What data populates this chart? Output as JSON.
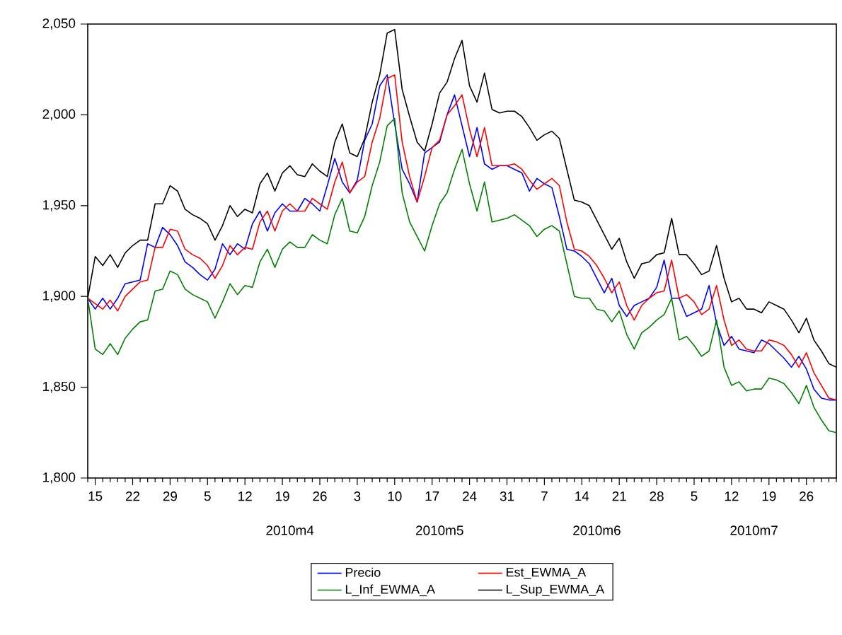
{
  "chart_data": {
    "type": "line",
    "categories": [
      null,
      "15",
      null,
      null,
      null,
      null,
      "22",
      null,
      null,
      null,
      null,
      "29",
      null,
      null,
      null,
      null,
      "5",
      null,
      null,
      null,
      null,
      "12",
      null,
      null,
      null,
      null,
      "19",
      null,
      null,
      null,
      null,
      "26",
      null,
      null,
      null,
      null,
      "3",
      null,
      null,
      null,
      null,
      "10",
      null,
      null,
      null,
      null,
      "17",
      null,
      null,
      null,
      null,
      "24",
      null,
      null,
      null,
      null,
      "31",
      null,
      null,
      null,
      null,
      "7",
      null,
      null,
      null,
      null,
      "14",
      null,
      null,
      null,
      null,
      "21",
      null,
      null,
      null,
      null,
      "28",
      null,
      null,
      null,
      null,
      "5",
      null,
      null,
      null,
      null,
      "12",
      null,
      null,
      null,
      null,
      "19",
      null,
      null,
      null,
      null,
      "26",
      null,
      null,
      null,
      null
    ],
    "series": [
      {
        "name": "Precio",
        "color": "#0000ff",
        "values": [
          1899,
          1893,
          1899,
          1893,
          1899,
          1907,
          1908,
          1909,
          1929,
          1927,
          1938,
          1934,
          1928,
          1919,
          1916,
          1912,
          1909,
          1915,
          1929,
          1923,
          1929,
          1926,
          1940,
          1947,
          1936,
          1946,
          1951,
          1947,
          1947,
          1954,
          1951,
          1947,
          1961,
          1976,
          1963,
          1957,
          1964,
          1986,
          1995,
          2016,
          2022,
          1995,
          1970,
          1962,
          1952,
          1979,
          1982,
          1985,
          2000,
          2011,
          1994,
          1977,
          1993,
          1973,
          1970,
          1972,
          1972,
          1970,
          1968,
          1958,
          1965,
          1962,
          1960,
          1944,
          1926,
          1925,
          1922,
          1918,
          1910,
          1902,
          1910,
          1895,
          1889,
          1895,
          1897,
          1899,
          1905,
          1920,
          1899,
          1899,
          1889,
          1891,
          1893,
          1906,
          1885,
          1873,
          1878,
          1871,
          1870,
          1869,
          1876,
          1874,
          1870,
          1866,
          1861,
          1867,
          1860,
          1849,
          1844,
          1843,
          1843
        ]
      },
      {
        "name": "Est_EWMA_A",
        "color": "#ff0000",
        "values": [
          1899,
          1896,
          1893,
          1898,
          1892,
          1900,
          1904,
          1908,
          1909,
          1927,
          1927,
          1937,
          1936,
          1926,
          1923,
          1921,
          1917,
          1910,
          1917,
          1928,
          1923,
          1927,
          1926,
          1941,
          1947,
          1936,
          1947,
          1951,
          1947,
          1947,
          1954,
          1951,
          1948,
          1963,
          1974,
          1957,
          1963,
          1966,
          1985,
          1998,
          2020,
          2022,
          1985,
          1966,
          1952,
          1966,
          1982,
          1986,
          2000,
          2005,
          2011,
          1992,
          1977,
          1993,
          1972,
          1972,
          1972,
          1973,
          1970,
          1964,
          1959,
          1962,
          1965,
          1961,
          1941,
          1926,
          1925,
          1922,
          1917,
          1910,
          1902,
          1908,
          1895,
          1887,
          1895,
          1899,
          1902,
          1903,
          1920,
          1899,
          1901,
          1897,
          1890,
          1893,
          1906,
          1887,
          1873,
          1876,
          1871,
          1870,
          1870,
          1876,
          1875,
          1873,
          1868,
          1861,
          1869,
          1858,
          1851,
          1844,
          1843
        ]
      },
      {
        "name": "L_Inf_EWMA_A",
        "color": "#008000",
        "values": [
          1899,
          1871,
          1868,
          1874,
          1868,
          1877,
          1882,
          1886,
          1887,
          1903,
          1904,
          1914,
          1912,
          1904,
          1901,
          1899,
          1897,
          1888,
          1897,
          1907,
          1901,
          1906,
          1905,
          1919,
          1926,
          1916,
          1926,
          1930,
          1927,
          1927,
          1934,
          1931,
          1929,
          1945,
          1954,
          1936,
          1935,
          1944,
          1961,
          1974,
          1994,
          1998,
          1957,
          1941,
          1933,
          1925,
          1939,
          1951,
          1957,
          1970,
          1981,
          1962,
          1947,
          1963,
          1941,
          1942,
          1943,
          1945,
          1942,
          1939,
          1933,
          1937,
          1939,
          1936,
          1918,
          1900,
          1899,
          1899,
          1893,
          1892,
          1886,
          1892,
          1879,
          1871,
          1880,
          1883,
          1887,
          1890,
          1899,
          1876,
          1878,
          1873,
          1867,
          1870,
          1887,
          1861,
          1851,
          1853,
          1848,
          1849,
          1849,
          1855,
          1854,
          1852,
          1847,
          1841,
          1851,
          1839,
          1832,
          1826,
          1825
        ]
      },
      {
        "name": "L_Sup_EWMA_A",
        "color": "#000000",
        "values": [
          1899,
          1922,
          1917,
          1923,
          1916,
          1924,
          1928,
          1931,
          1931,
          1951,
          1951,
          1961,
          1958,
          1948,
          1945,
          1943,
          1940,
          1931,
          1939,
          1950,
          1944,
          1948,
          1946,
          1962,
          1968,
          1958,
          1968,
          1972,
          1967,
          1966,
          1973,
          1969,
          1966,
          1985,
          1995,
          1979,
          1977,
          1987,
          2007,
          2022,
          2045,
          2047,
          2014,
          1999,
          1985,
          1980,
          1995,
          2012,
          2018,
          2031,
          2041,
          2016,
          2007,
          2023,
          2003,
          2001,
          2002,
          2002,
          1999,
          1993,
          1986,
          1989,
          1991,
          1987,
          1970,
          1953,
          1952,
          1950,
          1942,
          1934,
          1926,
          1932,
          1919,
          1910,
          1918,
          1919,
          1923,
          1924,
          1943,
          1923,
          1923,
          1918,
          1912,
          1914,
          1928,
          1910,
          1897,
          1899,
          1893,
          1893,
          1891,
          1897,
          1895,
          1893,
          1887,
          1880,
          1888,
          1876,
          1870,
          1863,
          1861
        ]
      }
    ],
    "ylim": [
      1800,
      2050
    ],
    "yticks": [
      {
        "value": 1800,
        "label": "1,800"
      },
      {
        "value": 1850,
        "label": "1,850"
      },
      {
        "value": 1900,
        "label": "1,900"
      },
      {
        "value": 1950,
        "label": "1,950"
      },
      {
        "value": 2000,
        "label": "2,000"
      },
      {
        "value": 2050,
        "label": "2,050"
      }
    ],
    "annotations": [
      "2010m4",
      "2010m5",
      "2010m6",
      "2010m7"
    ],
    "legend": "bottom"
  }
}
